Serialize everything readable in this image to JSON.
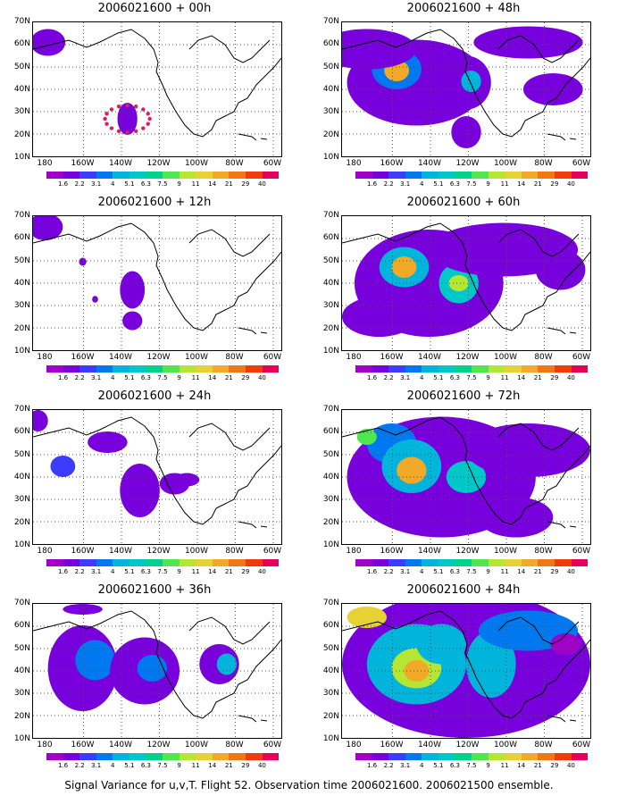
{
  "caption": "Signal Variance for u,v,T. Flight 52. Observation time 2006021600. 2006021500 ensemble.",
  "y_ticks": [
    "70N",
    "60N",
    "50N",
    "40N",
    "30N",
    "20N",
    "10N"
  ],
  "x_ticks": [
    "180",
    "160W",
    "140W",
    "120W",
    "100W",
    "80W",
    "60W"
  ],
  "colorbar": {
    "levels": [
      "1.6",
      "2.2",
      "3.1",
      "4",
      "5.1",
      "6.3",
      "7.5",
      "9",
      "11",
      "14",
      "21",
      "29",
      "40"
    ],
    "colors": [
      "#a000c8",
      "#7800dc",
      "#3c3cff",
      "#0078f0",
      "#00b4dc",
      "#00c8c8",
      "#00d28c",
      "#50e650",
      "#b4e632",
      "#e6d232",
      "#f0aa28",
      "#f07814",
      "#f03c0a",
      "#e6005a"
    ]
  },
  "panels": [
    {
      "title": "2006021600 + 00h",
      "blobs": [
        [
          0.06,
          0.15,
          0.07,
          0.1,
          1
        ],
        [
          0.38,
          0.72,
          0.04,
          0.12,
          1
        ]
      ],
      "dots": true
    },
    {
      "title": "2006021600 + 12h",
      "blobs": [
        [
          0.05,
          0.08,
          0.07,
          0.1,
          1
        ],
        [
          0.4,
          0.55,
          0.05,
          0.14,
          1
        ],
        [
          0.4,
          0.78,
          0.04,
          0.07,
          1
        ],
        [
          0.2,
          0.34,
          0.015,
          0.03,
          1
        ],
        [
          0.25,
          0.62,
          0.012,
          0.025,
          1
        ]
      ],
      "dots": false
    },
    {
      "title": "2006021600 + 24h",
      "blobs": [
        [
          0.02,
          0.08,
          0.04,
          0.08,
          1
        ],
        [
          0.3,
          0.24,
          0.08,
          0.08,
          1
        ],
        [
          0.12,
          0.42,
          0.05,
          0.08,
          2
        ],
        [
          0.43,
          0.6,
          0.08,
          0.2,
          1
        ],
        [
          0.57,
          0.55,
          0.06,
          0.08,
          1
        ],
        [
          0.62,
          0.52,
          0.05,
          0.05,
          1
        ]
      ],
      "dots": false
    },
    {
      "title": "2006021600 + 36h",
      "blobs": [
        [
          0.2,
          0.48,
          0.14,
          0.32,
          1
        ],
        [
          0.25,
          0.42,
          0.08,
          0.15,
          3
        ],
        [
          0.45,
          0.5,
          0.14,
          0.25,
          1
        ],
        [
          0.48,
          0.48,
          0.06,
          0.1,
          3
        ],
        [
          0.75,
          0.45,
          0.08,
          0.15,
          1
        ],
        [
          0.78,
          0.45,
          0.04,
          0.08,
          4
        ],
        [
          0.2,
          0.04,
          0.08,
          0.04,
          1
        ]
      ],
      "dots": false
    },
    {
      "title": "2006021600 + 48h",
      "blobs": [
        [
          0.3,
          0.45,
          0.28,
          0.32,
          1
        ],
        [
          0.22,
          0.35,
          0.1,
          0.15,
          3
        ],
        [
          0.22,
          0.36,
          0.05,
          0.08,
          10
        ],
        [
          0.5,
          0.45,
          0.1,
          0.2,
          1
        ],
        [
          0.52,
          0.44,
          0.04,
          0.08,
          4
        ],
        [
          0.5,
          0.82,
          0.06,
          0.12,
          1
        ],
        [
          0.75,
          0.15,
          0.22,
          0.12,
          1
        ],
        [
          0.85,
          0.5,
          0.12,
          0.12,
          1
        ],
        [
          0.1,
          0.2,
          0.2,
          0.15,
          1
        ]
      ],
      "dots": false
    },
    {
      "title": "2006021600 + 60h",
      "blobs": [
        [
          0.35,
          0.5,
          0.3,
          0.4,
          1
        ],
        [
          0.25,
          0.38,
          0.1,
          0.15,
          4
        ],
        [
          0.25,
          0.38,
          0.05,
          0.08,
          10
        ],
        [
          0.47,
          0.5,
          0.08,
          0.15,
          5
        ],
        [
          0.47,
          0.5,
          0.04,
          0.06,
          8
        ],
        [
          0.65,
          0.25,
          0.3,
          0.2,
          1
        ],
        [
          0.88,
          0.4,
          0.1,
          0.15,
          1
        ],
        [
          0.15,
          0.75,
          0.15,
          0.15,
          1
        ]
      ],
      "dots": false
    },
    {
      "title": "2006021600 + 72h",
      "blobs": [
        [
          0.4,
          0.5,
          0.38,
          0.45,
          1
        ],
        [
          0.2,
          0.25,
          0.1,
          0.15,
          3
        ],
        [
          0.1,
          0.2,
          0.04,
          0.06,
          7
        ],
        [
          0.28,
          0.42,
          0.12,
          0.2,
          4
        ],
        [
          0.28,
          0.45,
          0.06,
          0.1,
          10
        ],
        [
          0.5,
          0.5,
          0.08,
          0.12,
          5
        ],
        [
          0.75,
          0.3,
          0.25,
          0.2,
          1
        ],
        [
          0.7,
          0.8,
          0.15,
          0.15,
          1
        ]
      ],
      "dots": false
    },
    {
      "title": "2006021600 + 84h",
      "blobs": [
        [
          0.5,
          0.45,
          0.5,
          0.55,
          1
        ],
        [
          0.3,
          0.45,
          0.2,
          0.3,
          4
        ],
        [
          0.3,
          0.48,
          0.1,
          0.15,
          8
        ],
        [
          0.3,
          0.5,
          0.05,
          0.08,
          10
        ],
        [
          0.1,
          0.1,
          0.08,
          0.08,
          9
        ],
        [
          0.4,
          0.3,
          0.1,
          0.15,
          4
        ],
        [
          0.6,
          0.45,
          0.1,
          0.25,
          4
        ],
        [
          0.75,
          0.2,
          0.2,
          0.15,
          3
        ],
        [
          0.9,
          0.3,
          0.06,
          0.08,
          0
        ]
      ],
      "dots": false
    }
  ]
}
